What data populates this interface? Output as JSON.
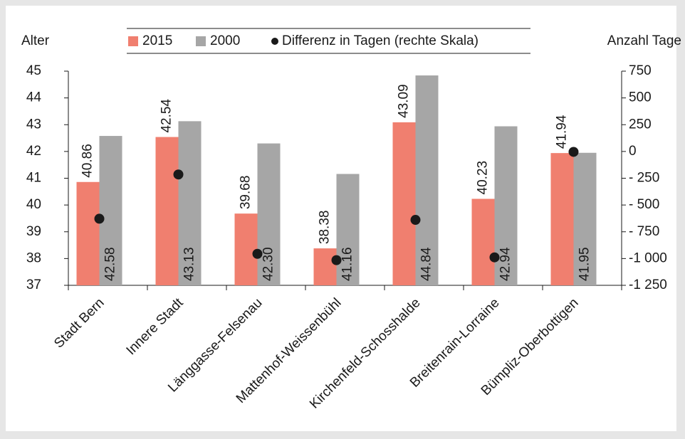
{
  "chart_data": {
    "type": "bar",
    "y_label": "Alter",
    "y2_label": "Anzahl Tage",
    "categories": [
      "Stadt Bern",
      "Innere Stadt",
      "Länggasse-Felsenau",
      "Mattenhof-Weissenbühl",
      "Kirchenfeld-Schosshalde",
      "Breitenrain-Lorraine",
      "Bümpliz-Oberbottigen"
    ],
    "series": [
      {
        "name": "2015",
        "color": "#f07f6f",
        "values": [
          40.86,
          42.54,
          39.68,
          38.38,
          43.09,
          40.23,
          41.94
        ],
        "value_labels": [
          "40.86",
          "42.54",
          "39.68",
          "38.38",
          "43.09",
          "40.23",
          "41.94"
        ]
      },
      {
        "name": "2000",
        "color": "#a6a6a6",
        "values": [
          42.58,
          43.13,
          42.3,
          41.16,
          44.84,
          42.94,
          41.95
        ],
        "value_labels": [
          "42.58",
          "43.13",
          "42.30",
          "41.16",
          "44.84",
          "42.94",
          "41.95"
        ]
      },
      {
        "name": "Differenz in Tagen (rechte Skala)",
        "color": "#1a1a1a",
        "axis": "y2",
        "type": "scatter",
        "values": [
          -628,
          -215,
          -956,
          -1015,
          -639,
          -989,
          -4
        ]
      }
    ],
    "ylim": [
      37,
      45
    ],
    "yticks": [
      37,
      38,
      39,
      40,
      41,
      42,
      43,
      44,
      45
    ],
    "y2lim": [
      -1250,
      750
    ],
    "y2ticks": [
      {
        "value": -1250,
        "label": "-1 250"
      },
      {
        "value": -1000,
        "label": "-1 000"
      },
      {
        "value": -750,
        "label": "- 750"
      },
      {
        "value": -500,
        "label": "- 500"
      },
      {
        "value": -250,
        "label": "- 250"
      },
      0,
      250,
      500,
      750
    ],
    "legend": "top"
  }
}
